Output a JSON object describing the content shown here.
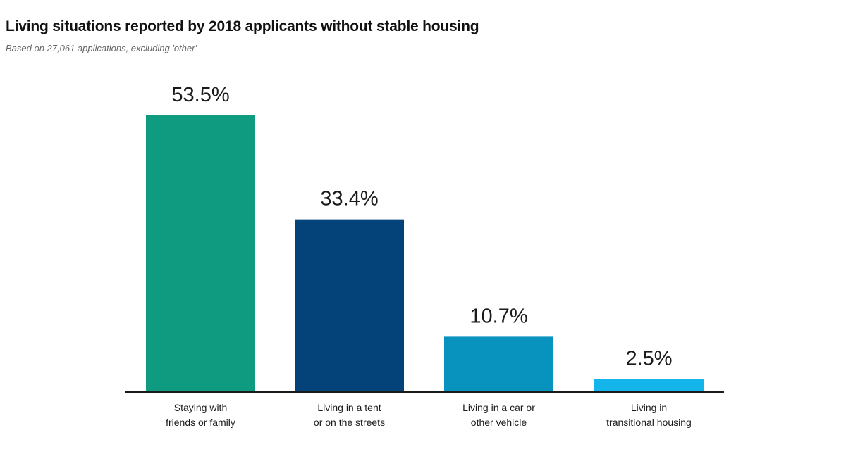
{
  "title": "Living situations reported by 2018 applicants without stable housing",
  "subtitle": "Based on 27,061 applications, excluding 'other'",
  "chart_data": {
    "type": "bar",
    "title": "Living situations reported by 2018 applicants without stable housing",
    "subtitle": "Based on 27,061 applications, excluding 'other'",
    "categories": [
      [
        "Staying with",
        "friends or family"
      ],
      [
        "Living in a tent",
        "or on the streets"
      ],
      [
        "Living in a car or",
        "other vehicle"
      ],
      [
        "Living in",
        "transitional housing"
      ]
    ],
    "values": [
      53.5,
      33.4,
      10.7,
      2.5
    ],
    "value_labels": [
      "53.5%",
      "33.4%",
      "10.7%",
      "2.5%"
    ],
    "colors": [
      "#0f9b80",
      "#03437a",
      "#0893bf",
      "#14b5ea"
    ],
    "xlabel": "",
    "ylabel": "",
    "ylim": [
      0,
      53.5
    ],
    "grid": false,
    "legend": "none"
  }
}
